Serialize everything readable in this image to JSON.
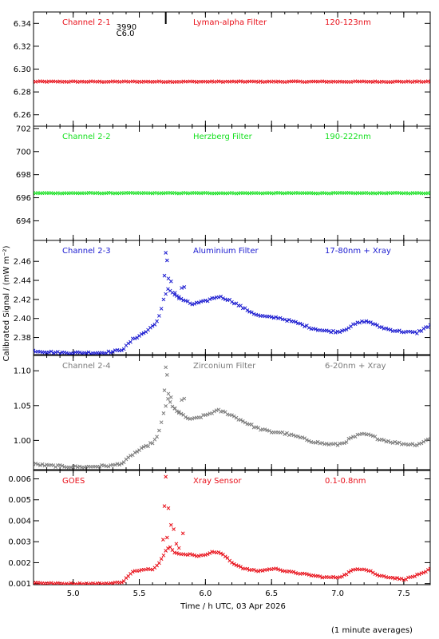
{
  "chart_data": {
    "type": "scatter",
    "xlabel": "Time / h UTC, 03 Apr 2026",
    "ylabel": "Calibrated Signal / (mW m⁻²)",
    "footnote": "(1 minute averages)",
    "xlim": [
      4.7,
      7.7
    ],
    "xticks": [
      "5.0",
      "5.5",
      "6.0",
      "6.5",
      "7.0",
      "7.5"
    ],
    "xtick_values": [
      5.0,
      5.5,
      6.0,
      6.5,
      7.0,
      7.5
    ],
    "annotation": {
      "line1": "3990",
      "line2": "C6.0",
      "x": 5.7
    },
    "colors": {
      "red": "#e8101a",
      "green": "#15e01f",
      "blue": "#1a1ad0",
      "gray": "#7a7a7a"
    },
    "panels": [
      {
        "channel": "Channel 2-1",
        "filter": "Lyman-alpha Filter",
        "range": "120-123nm",
        "color": "#e8101a",
        "marker": "x",
        "ylim": [
          6.25,
          6.35
        ],
        "yticks": [
          "6.34",
          "6.32",
          "6.30",
          "6.28",
          "6.26"
        ],
        "ytick_values": [
          6.34,
          6.32,
          6.3,
          6.28,
          6.26
        ],
        "x": [
          4.7,
          7.7
        ],
        "y": [
          6.289,
          6.289
        ],
        "jitter": 0.0004
      },
      {
        "channel": "Channel 2-2",
        "filter": "Herzberg Filter",
        "range": "190-222nm",
        "color": "#15e01f",
        "marker": "x",
        "ylim": [
          692.3,
          702.2
        ],
        "yticks": [
          "702",
          "700",
          "698",
          "696",
          "694"
        ],
        "ytick_values": [
          702,
          700,
          698,
          696,
          694
        ],
        "x": [
          4.7,
          7.7
        ],
        "y": [
          696.4,
          696.4
        ],
        "jitter": 0.03
      },
      {
        "channel": "Channel 2-3",
        "filter": "Aluminium Filter",
        "range": "17-80nm + Xray",
        "color": "#1a1ad0",
        "marker": "x",
        "ylim": [
          2.362,
          2.482
        ],
        "yticks": [
          "2.46",
          "2.44",
          "2.42",
          "2.40",
          "2.38"
        ],
        "ytick_values": [
          2.46,
          2.44,
          2.42,
          2.4,
          2.38
        ],
        "x": [
          4.7,
          4.8,
          4.9,
          5.0,
          5.1,
          5.2,
          5.3,
          5.38,
          5.45,
          5.5,
          5.55,
          5.6,
          5.64,
          5.66,
          5.69,
          5.72,
          5.75,
          5.8,
          5.85,
          5.9,
          6.0,
          6.05,
          6.1,
          6.15,
          6.2,
          6.3,
          6.4,
          6.5,
          6.55,
          6.6,
          6.7,
          6.8,
          6.9,
          7.0,
          7.05,
          7.1,
          7.15,
          7.2,
          7.25,
          7.3,
          7.4,
          7.5,
          7.6,
          7.65,
          7.7
        ],
        "y": [
          2.366,
          2.365,
          2.364,
          2.364,
          2.364,
          2.364,
          2.365,
          2.368,
          2.378,
          2.382,
          2.386,
          2.392,
          2.398,
          2.406,
          2.423,
          2.432,
          2.427,
          2.422,
          2.418,
          2.415,
          2.418,
          2.421,
          2.423,
          2.421,
          2.418,
          2.41,
          2.403,
          2.401,
          2.401,
          2.399,
          2.395,
          2.39,
          2.387,
          2.386,
          2.388,
          2.392,
          2.395,
          2.397,
          2.396,
          2.392,
          2.388,
          2.386,
          2.385,
          2.389,
          2.393
        ],
        "jitter": 0.001,
        "outliers": {
          "x": [
            5.7,
            5.71,
            5.69,
            5.72,
            5.74,
            5.77,
            5.8,
            5.82,
            5.84
          ],
          "y": [
            2.469,
            2.461,
            2.445,
            2.442,
            2.439,
            2.427,
            2.421,
            2.432,
            2.433
          ]
        }
      },
      {
        "channel": "Channel 2-4",
        "filter": "Zirconium Filter",
        "range": "6-20nm + Xray",
        "color": "#7a7a7a",
        "marker": "x",
        "ylim": [
          0.958,
          1.122
        ],
        "yticks": [
          "1.10",
          "1.05",
          "1.00"
        ],
        "ytick_values": [
          1.1,
          1.05,
          1.0
        ],
        "x": [
          4.7,
          4.8,
          4.9,
          5.0,
          5.1,
          5.2,
          5.3,
          5.38,
          5.45,
          5.5,
          5.55,
          5.6,
          5.64,
          5.66,
          5.69,
          5.72,
          5.75,
          5.8,
          5.85,
          5.9,
          6.0,
          6.05,
          6.1,
          6.15,
          6.2,
          6.3,
          6.4,
          6.5,
          6.55,
          6.6,
          6.7,
          6.8,
          6.9,
          7.0,
          7.05,
          7.1,
          7.15,
          7.2,
          7.25,
          7.3,
          7.4,
          7.5,
          7.6,
          7.65,
          7.7
        ],
        "y": [
          0.966,
          0.964,
          0.963,
          0.962,
          0.962,
          0.963,
          0.964,
          0.968,
          0.98,
          0.986,
          0.991,
          0.997,
          1.006,
          1.02,
          1.045,
          1.06,
          1.048,
          1.04,
          1.033,
          1.03,
          1.036,
          1.04,
          1.043,
          1.04,
          1.036,
          1.026,
          1.017,
          1.012,
          1.012,
          1.01,
          1.005,
          0.999,
          0.995,
          0.994,
          0.997,
          1.003,
          1.007,
          1.009,
          1.007,
          1.003,
          0.998,
          0.995,
          0.994,
          0.998,
          1.003
        ],
        "jitter": 0.0015,
        "outliers": {
          "x": [
            5.7,
            5.71,
            5.69,
            5.72,
            5.74,
            5.77,
            5.8,
            5.82,
            5.84
          ],
          "y": [
            1.105,
            1.094,
            1.072,
            1.067,
            1.062,
            1.046,
            1.041,
            1.058,
            1.06
          ]
        }
      },
      {
        "channel": "GOES",
        "filter": "Xray Sensor",
        "range": "0.1-0.8nm",
        "color": "#e8101a",
        "marker": "x",
        "ylim": [
          0.00095,
          0.0064
        ],
        "yticks": [
          "0.006",
          "0.005",
          "0.004",
          "0.003",
          "0.002",
          "0.001"
        ],
        "ytick_values": [
          0.006,
          0.005,
          0.004,
          0.003,
          0.002,
          0.001
        ],
        "x": [
          4.7,
          4.8,
          4.9,
          5.0,
          5.1,
          5.2,
          5.3,
          5.38,
          5.42,
          5.46,
          5.5,
          5.55,
          5.6,
          5.64,
          5.67,
          5.7,
          5.73,
          5.76,
          5.8,
          5.85,
          5.9,
          5.95,
          6.0,
          6.05,
          6.1,
          6.15,
          6.2,
          6.3,
          6.4,
          6.5,
          6.55,
          6.6,
          6.7,
          6.8,
          6.9,
          7.0,
          7.05,
          7.1,
          7.15,
          7.2,
          7.25,
          7.3,
          7.4,
          7.5,
          7.6,
          7.65,
          7.7
        ],
        "y": [
          0.00105,
          0.00102,
          0.001,
          0.001,
          0.001,
          0.001,
          0.00102,
          0.0011,
          0.0014,
          0.0016,
          0.0016,
          0.0017,
          0.0017,
          0.0019,
          0.0022,
          0.0026,
          0.0028,
          0.0025,
          0.0024,
          0.0024,
          0.0024,
          0.0023,
          0.0024,
          0.0025,
          0.0025,
          0.0023,
          0.002,
          0.0017,
          0.0016,
          0.0017,
          0.0017,
          0.0016,
          0.0015,
          0.0014,
          0.0013,
          0.0013,
          0.0014,
          0.0016,
          0.0017,
          0.0017,
          0.0016,
          0.0014,
          0.0013,
          0.0012,
          0.0014,
          0.0015,
          0.0017
        ],
        "jitter": 3e-05,
        "outliers": {
          "x": [
            5.7,
            5.69,
            5.72,
            5.74,
            5.76,
            5.68,
            5.78,
            5.8,
            5.83,
            5.71
          ],
          "y": [
            0.0061,
            0.0047,
            0.0046,
            0.0038,
            0.0036,
            0.0031,
            0.0029,
            0.0027,
            0.0034,
            0.0032
          ]
        }
      }
    ]
  }
}
